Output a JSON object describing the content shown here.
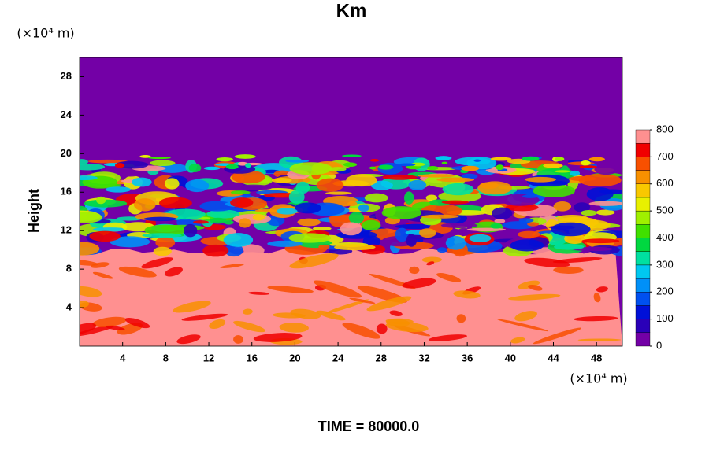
{
  "chart_data": {
    "type": "contour",
    "title": "Km",
    "ylabel": "Height",
    "x_unit": "(×10⁴ m)",
    "y_unit": "(×10⁴ m)",
    "xlim": [
      0,
      50.4
    ],
    "xticks": [
      4,
      8,
      12,
      16,
      20,
      24,
      28,
      32,
      36,
      40,
      44,
      48
    ],
    "ylim": [
      0,
      30
    ],
    "yticks": [
      4,
      8,
      12,
      16,
      20,
      24,
      28
    ],
    "colorbar": {
      "lim": [
        0,
        800
      ],
      "ticks": [
        0,
        100,
        200,
        300,
        400,
        500,
        600,
        700,
        800
      ],
      "colors": [
        "#7300a6",
        "#2a00b8",
        "#0010d8",
        "#0050f0",
        "#0090f8",
        "#00c8f0",
        "#00e0a0",
        "#00d840",
        "#40e000",
        "#a0f000",
        "#e8f000",
        "#f8c800",
        "#f89000",
        "#f85000",
        "#f00000",
        "#ff9090"
      ]
    },
    "time_label": "TIME = 80000.0"
  }
}
